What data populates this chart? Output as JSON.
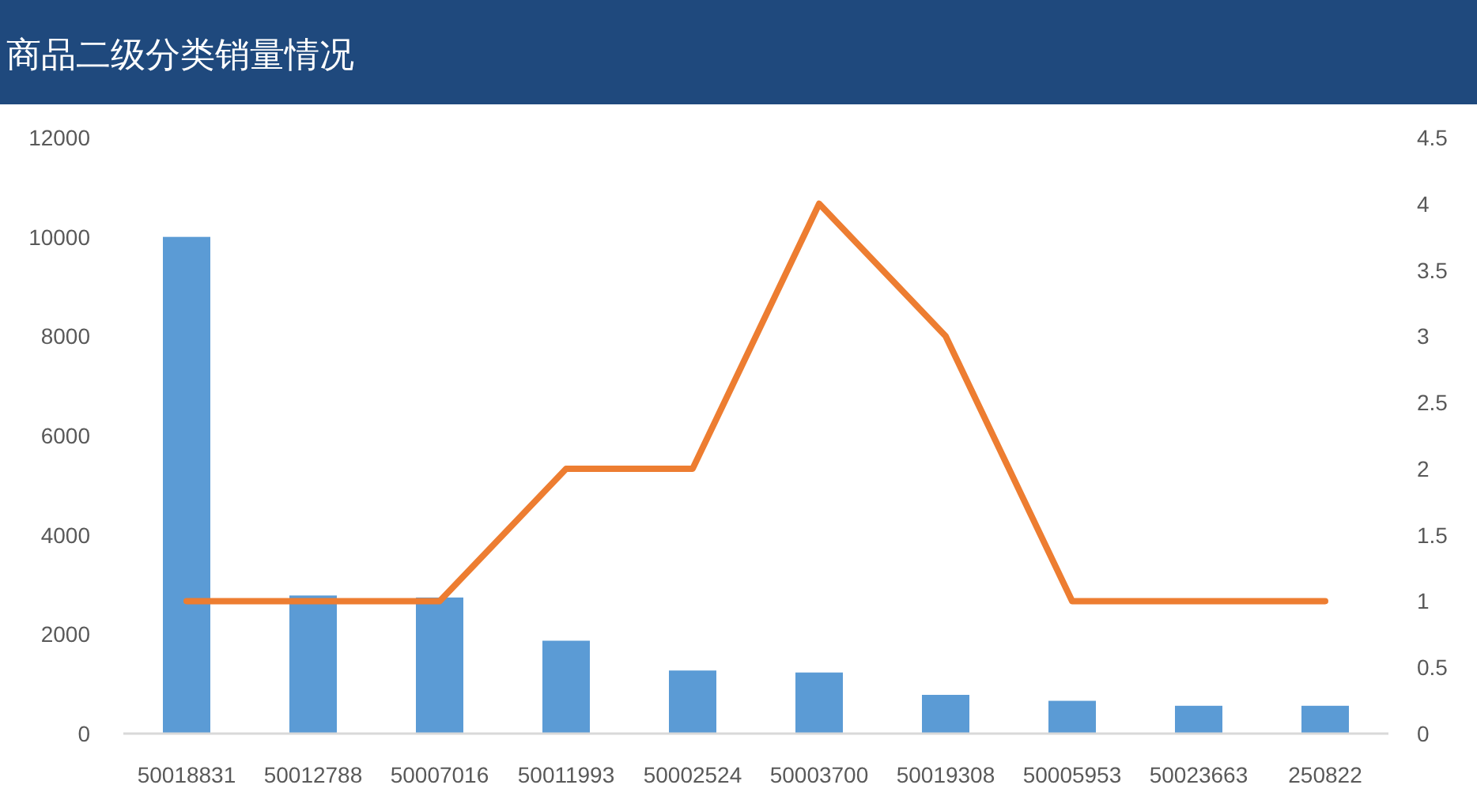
{
  "chart_data": {
    "type": "bar",
    "title": "商品二级分类销量情况",
    "categories": [
      "50018831",
      "50012788",
      "50007016",
      "50011993",
      "50002524",
      "50003700",
      "50019308",
      "50005953",
      "50023663",
      "250822"
    ],
    "series": [
      {
        "color": "#5b9bd5",
        "values": [
          10000,
          2780,
          2740,
          1870,
          1270,
          1230,
          780,
          660,
          560,
          560
        ]
      },
      {
        "type": "line",
        "axis": "y2",
        "color": "#ed7d31",
        "values": [
          1,
          1,
          1,
          2,
          2,
          4,
          3,
          1,
          1,
          1
        ]
      }
    ],
    "ylim": [
      0,
      12000
    ],
    "yticks": [
      0,
      2000,
      4000,
      6000,
      8000,
      10000,
      12000
    ],
    "y2lim": [
      0,
      4.5
    ],
    "y2ticks": [
      0,
      0.5,
      1,
      1.5,
      2,
      2.5,
      3,
      3.5,
      4,
      4.5
    ],
    "grid": false
  }
}
